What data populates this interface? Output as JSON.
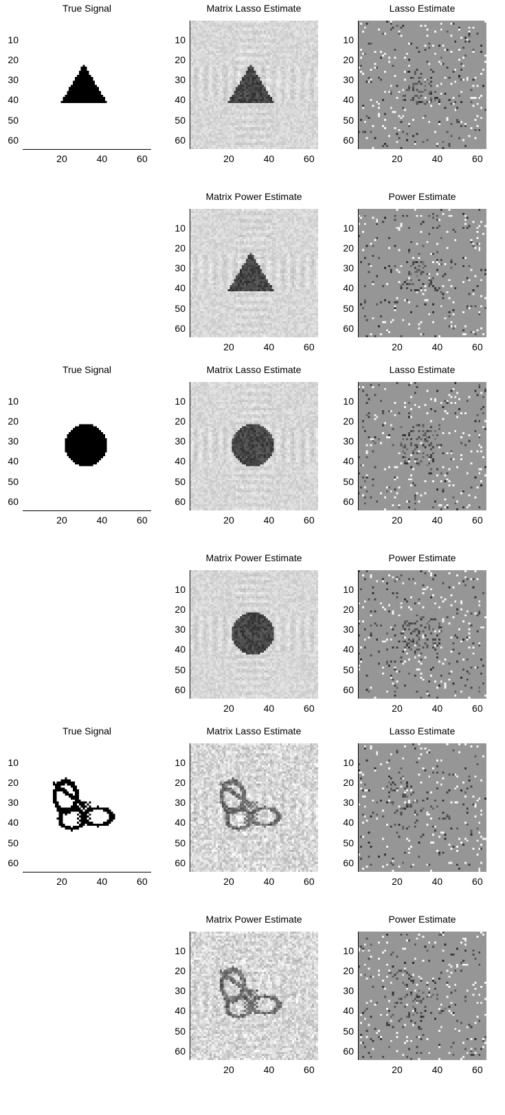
{
  "figure": {
    "row_titles": {
      "true_signal": "True Signal",
      "matrix_lasso": "Matrix Lasso Estimate",
      "lasso": "Lasso Estimate",
      "matrix_power": "Matrix Power Estimate",
      "power": "Power Estimate"
    },
    "y_ticks": [
      "10",
      "20",
      "30",
      "40",
      "50",
      "60"
    ],
    "x_ticks": [
      "20",
      "40",
      "60"
    ]
  },
  "chart_data": [
    {
      "type": "heatmap",
      "title": "True Signal",
      "shape": "triangle",
      "grid": [
        64,
        64
      ],
      "xticks": [
        20,
        40,
        60
      ],
      "yticks": [
        10,
        20,
        30,
        40,
        50,
        60
      ]
    },
    {
      "type": "heatmap",
      "title": "Matrix Lasso Estimate",
      "shape": "triangle",
      "grid": [
        64,
        64
      ],
      "xticks": [
        20,
        40,
        60
      ],
      "yticks": [
        10,
        20,
        30,
        40,
        50,
        60
      ]
    },
    {
      "type": "heatmap",
      "title": "Lasso Estimate",
      "shape": "triangle",
      "grid": [
        64,
        64
      ],
      "xticks": [
        20,
        40,
        60
      ],
      "yticks": [
        10,
        20,
        30,
        40,
        50,
        60
      ]
    },
    {
      "type": "heatmap",
      "title": "Matrix Power Estimate",
      "shape": "triangle",
      "grid": [
        64,
        64
      ],
      "xticks": [
        20,
        40,
        60
      ],
      "yticks": [
        10,
        20,
        30,
        40,
        50,
        60
      ]
    },
    {
      "type": "heatmap",
      "title": "Power Estimate",
      "shape": "triangle",
      "grid": [
        64,
        64
      ],
      "xticks": [
        20,
        40,
        60
      ],
      "yticks": [
        10,
        20,
        30,
        40,
        50,
        60
      ]
    },
    {
      "type": "heatmap",
      "title": "True Signal",
      "shape": "circle",
      "grid": [
        64,
        64
      ],
      "xticks": [
        20,
        40,
        60
      ],
      "yticks": [
        10,
        20,
        30,
        40,
        50,
        60
      ]
    },
    {
      "type": "heatmap",
      "title": "Matrix Lasso Estimate",
      "shape": "circle",
      "grid": [
        64,
        64
      ],
      "xticks": [
        20,
        40,
        60
      ],
      "yticks": [
        10,
        20,
        30,
        40,
        50,
        60
      ]
    },
    {
      "type": "heatmap",
      "title": "Lasso Estimate",
      "shape": "circle",
      "grid": [
        64,
        64
      ],
      "xticks": [
        20,
        40,
        60
      ],
      "yticks": [
        10,
        20,
        30,
        40,
        50,
        60
      ]
    },
    {
      "type": "heatmap",
      "title": "Matrix Power Estimate",
      "shape": "circle",
      "grid": [
        64,
        64
      ],
      "xticks": [
        20,
        40,
        60
      ],
      "yticks": [
        10,
        20,
        30,
        40,
        50,
        60
      ]
    },
    {
      "type": "heatmap",
      "title": "Power Estimate",
      "shape": "circle",
      "grid": [
        64,
        64
      ],
      "xticks": [
        20,
        40,
        60
      ],
      "yticks": [
        10,
        20,
        30,
        40,
        50,
        60
      ]
    },
    {
      "type": "heatmap",
      "title": "True Signal",
      "shape": "butterfly",
      "grid": [
        64,
        64
      ],
      "xticks": [
        20,
        40,
        60
      ],
      "yticks": [
        10,
        20,
        30,
        40,
        50,
        60
      ]
    },
    {
      "type": "heatmap",
      "title": "Matrix Lasso Estimate",
      "shape": "butterfly",
      "grid": [
        64,
        64
      ],
      "xticks": [
        20,
        40,
        60
      ],
      "yticks": [
        10,
        20,
        30,
        40,
        50,
        60
      ]
    },
    {
      "type": "heatmap",
      "title": "Lasso Estimate",
      "shape": "butterfly",
      "grid": [
        64,
        64
      ],
      "xticks": [
        20,
        40,
        60
      ],
      "yticks": [
        10,
        20,
        30,
        40,
        50,
        60
      ]
    },
    {
      "type": "heatmap",
      "title": "Matrix Power Estimate",
      "shape": "butterfly",
      "grid": [
        64,
        64
      ],
      "xticks": [
        20,
        40,
        60
      ],
      "yticks": [
        10,
        20,
        30,
        40,
        50,
        60
      ]
    },
    {
      "type": "heatmap",
      "title": "Power Estimate",
      "shape": "butterfly",
      "grid": [
        64,
        64
      ],
      "xticks": [
        20,
        40,
        60
      ],
      "yticks": [
        10,
        20,
        30,
        40,
        50,
        60
      ]
    }
  ]
}
